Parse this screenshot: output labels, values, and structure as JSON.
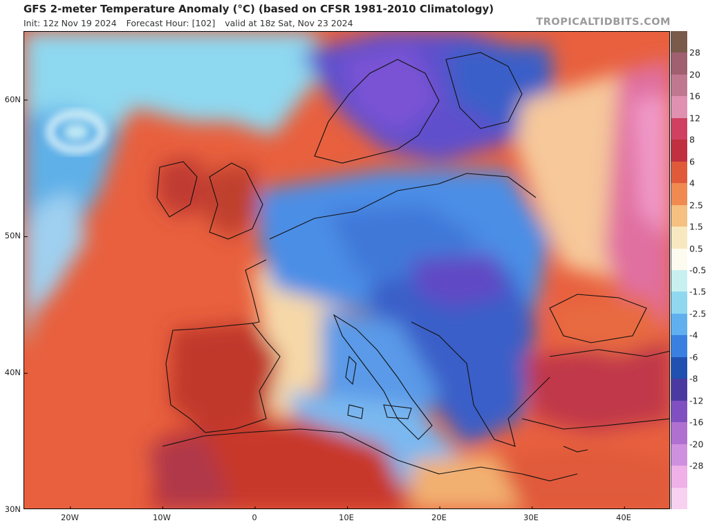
{
  "header": {
    "title": "GFS 2-meter Temperature Anomaly (°C) (based on CFSR 1981-2010 Climatology)",
    "init": "Init: 12z Nov 19 2024",
    "forecast_hour": "Forecast Hour: [102]",
    "valid": "valid at 18z Sat, Nov 23 2024",
    "brand": "TROPICALTIDBITS.COM"
  },
  "map": {
    "lat_labels": [
      "60N",
      "50N",
      "40N",
      "30N"
    ],
    "lon_labels": [
      "20W",
      "10W",
      "0",
      "10E",
      "20E",
      "30E",
      "40E"
    ],
    "lat_values": [
      60,
      50,
      40,
      30
    ],
    "lon_values": [
      -20,
      -10,
      0,
      10,
      20,
      30,
      40
    ],
    "lon_range": [
      -25,
      45
    ],
    "lat_range": [
      30,
      65
    ]
  },
  "colorbar": {
    "labels": [
      "28",
      "20",
      "16",
      "12",
      "8",
      "6",
      "4",
      "2.5",
      "1.5",
      "0.5",
      "-0.5",
      "-1.5",
      "-2.5",
      "-4",
      "-6",
      "-8",
      "-12",
      "-16",
      "-20",
      "-28"
    ],
    "colors": [
      "#7a5a4a",
      "#a06070",
      "#c07890",
      "#e090b0",
      "#d04060",
      "#c03040",
      "#e05a3a",
      "#f08a50",
      "#f5c080",
      "#f8e8c0",
      "#fdfaf0",
      "#c8f0f0",
      "#90d8f0",
      "#60b0f0",
      "#3a80e0",
      "#2050b0",
      "#4a3aa0",
      "#8050c0",
      "#b070d0",
      "#d090e0",
      "#f0b0e8"
    ],
    "bottom_color": "#f8d0f0"
  },
  "regions": {
    "atlantic_warm": "#e86040",
    "iberia_warm": "#c83a30",
    "central_europe_cold": "#4a8ae0",
    "balkans_cold": "#3a5ec8",
    "scandinavia_cold": "#6050c8",
    "russia_warm": "#e070a0",
    "north_africa_warm": "#c83a2a",
    "mediterranean_mild": "#78b8f0",
    "atlantic_cool": "#9ad8f0",
    "neutral": "#fff4e0"
  }
}
